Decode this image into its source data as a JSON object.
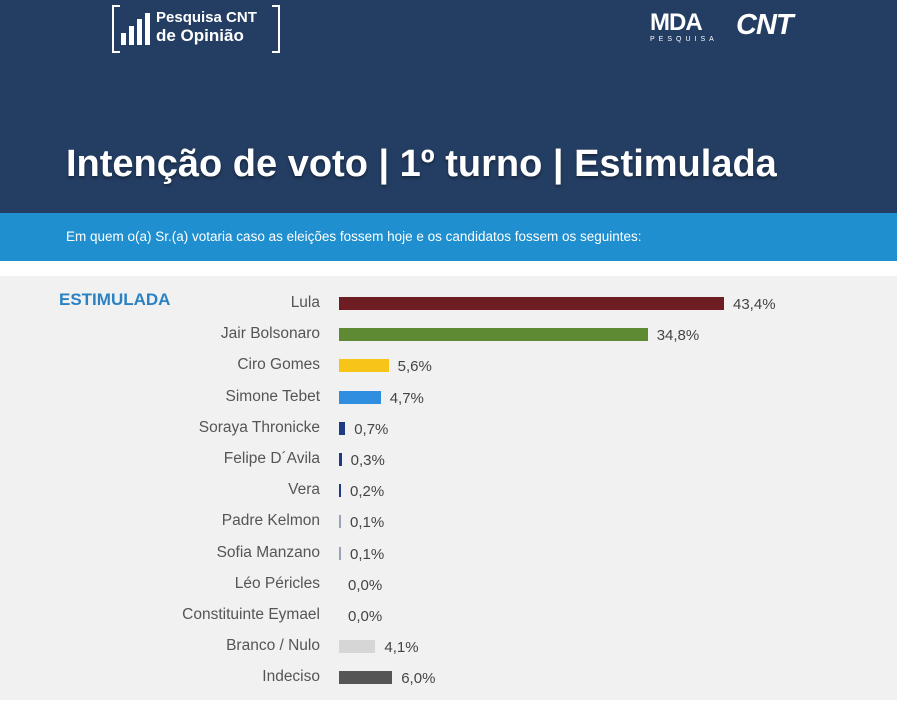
{
  "header": {
    "logo_line1": "Pesquisa CNT",
    "logo_line2": "de Opinião",
    "mda_logo": "MDA",
    "mda_sub": "PESQUISA",
    "cnt_logo": "CNT",
    "title": "Intenção de voto | 1º turno | Estimulada",
    "question": "Em quem o(a) Sr.(a) votaria caso as eleições fossem hoje e os candidatos fossem os seguintes:"
  },
  "colors": {
    "header_bg": "#243e63",
    "subbar_bg": "#1f8fcf",
    "section_label": "#2b82c2"
  },
  "chart_data": {
    "type": "bar",
    "orientation": "horizontal",
    "section_label": "ESTIMULADA",
    "categories": [
      "Lula",
      "Jair Bolsonaro",
      "Ciro Gomes",
      "Simone Tebet",
      "Soraya Thronicke",
      "Felipe D´Avila",
      "Vera",
      "Padre Kelmon",
      "Sofia Manzano",
      "Léo Péricles",
      "Constituinte Eymael",
      "Branco / Nulo",
      "Indeciso"
    ],
    "values": [
      43.4,
      34.8,
      5.6,
      4.7,
      0.7,
      0.3,
      0.2,
      0.1,
      0.1,
      0.0,
      0.0,
      4.1,
      6.0
    ],
    "value_labels": [
      "43,4%",
      "34,8%",
      "5,6%",
      "4,7%",
      "0,7%",
      "0,3%",
      "0,2%",
      "0,1%",
      "0,1%",
      "0,0%",
      "0,0%",
      "4,1%",
      "6,0%"
    ],
    "colors": [
      "#6e1d22",
      "#5e8a34",
      "#f6c518",
      "#2f8ee0",
      "#1e3a82",
      "#1e3a82",
      "#1e3a82",
      "#9aa3b5",
      "#9aa3b5",
      "#cccccc",
      "#cccccc",
      "#d6d6d6",
      "#555555"
    ],
    "xlim": [
      0,
      43.4
    ]
  }
}
